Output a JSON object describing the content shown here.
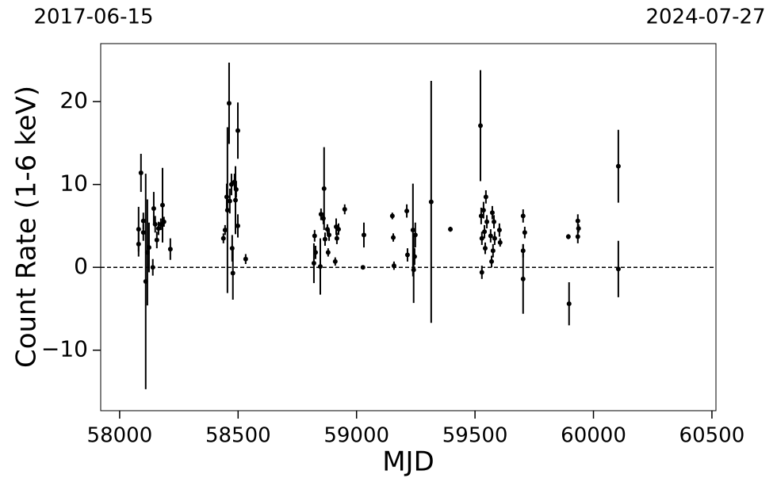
{
  "chart_data": {
    "type": "scatter",
    "xlabel": "MJD",
    "ylabel": "Count Rate (1-6 keV)",
    "date_range_labels": [
      "2017-06-15",
      "2024-07-27"
    ],
    "color": "#000000",
    "xlim": [
      57920,
      60517
    ],
    "ylim": [
      -17.3,
      27.0
    ],
    "xticks": [
      58000,
      58500,
      59000,
      59500,
      60000,
      60500
    ],
    "yticks": [
      {
        "value": -10,
        "label": "−10"
      },
      0,
      10,
      20
    ],
    "reference_line": 0,
    "x": [
      58080,
      58080,
      58090,
      58100,
      58100,
      58110,
      58117,
      58124,
      58140,
      58144,
      58150,
      58157,
      58164,
      58174,
      58181,
      58187,
      58214,
      58438,
      58445,
      58452,
      58455,
      58462,
      58465,
      58472,
      58475,
      58478,
      58485,
      58489,
      58492,
      58499,
      58499,
      58532,
      58820,
      58823,
      58827,
      58847,
      58850,
      58860,
      58863,
      58867,
      58877,
      58880,
      58884,
      58910,
      58914,
      58917,
      58924,
      58950,
      59027,
      59031,
      59151,
      59155,
      59158,
      59212,
      59215,
      59238,
      59241,
      59245,
      59248,
      59315,
      59396,
      59523,
      59526,
      59529,
      59529,
      59536,
      59540,
      59543,
      59546,
      59550,
      59566,
      59570,
      59573,
      59576,
      59580,
      59583,
      59603,
      59606,
      59703,
      59703,
      59703,
      59710,
      59894,
      59897,
      59934,
      59934,
      59937,
      60105,
      60105
    ],
    "values": [
      4.6,
      2.8,
      11.4,
      5.6,
      4.2,
      -1.7,
      1.8,
      2.4,
      0,
      7.1,
      5.2,
      3.3,
      4.7,
      5.2,
      7.5,
      5.5,
      2.2,
      3.5,
      4.5,
      8.5,
      6.9,
      19.8,
      8.0,
      10.0,
      2.3,
      -0.7,
      10.3,
      8.1,
      9.4,
      16.5,
      5.0,
      1.0,
      0.5,
      3.8,
      1.8,
      0.1,
      6.4,
      5.9,
      9.5,
      3.4,
      4.6,
      1.8,
      3.9,
      0.7,
      4.9,
      3.5,
      4.6,
      7.0,
      0,
      3.9,
      6.2,
      3.6,
      0.2,
      6.8,
      1.5,
      4.5,
      -0.3,
      1.3,
      3.9,
      7.9,
      4.6,
      17.1,
      6.2,
      -0.6,
      3.5,
      6.9,
      4.3,
      2.3,
      8.5,
      5.5,
      3.8,
      0.7,
      6.6,
      2.0,
      5.5,
      3.5,
      4.5,
      3.0,
      6.2,
      -1.4,
      2.0,
      4.2,
      3.7,
      -4.4,
      5.6,
      3.7,
      4.7,
      12.2,
      -0.2
    ],
    "errors": [
      2.7,
      1.5,
      2.3,
      1,
      1,
      13,
      6.4,
      3,
      1,
      2,
      1,
      1,
      0.8,
      0.7,
      4.5,
      0.6,
      1.3,
      0.6,
      0.6,
      1.6,
      10,
      4.9,
      1.5,
      1.3,
      1.6,
      3.2,
      1,
      4.1,
      1,
      3.4,
      1.4,
      0.6,
      2.4,
      0.7,
      0.8,
      3.4,
      0.7,
      0.7,
      5,
      0.8,
      0.6,
      0.5,
      0.7,
      0.5,
      1,
      0.7,
      0.7,
      0.6,
      0.2,
      1.5,
      0.4,
      0.5,
      0.5,
      0.8,
      0.8,
      5.6,
      4,
      1,
      1.5,
      14.6,
      0.3,
      6.7,
      1,
      0.8,
      0.8,
      1,
      0.8,
      0.7,
      0.8,
      0.8,
      0.8,
      0.7,
      0.8,
      0.8,
      0.8,
      0.8,
      0.8,
      0.5,
      0.8,
      4.2,
      0.8,
      0.7,
      0.3,
      2.6,
      0.8,
      0.8,
      0.5,
      4.4,
      3.4
    ]
  }
}
